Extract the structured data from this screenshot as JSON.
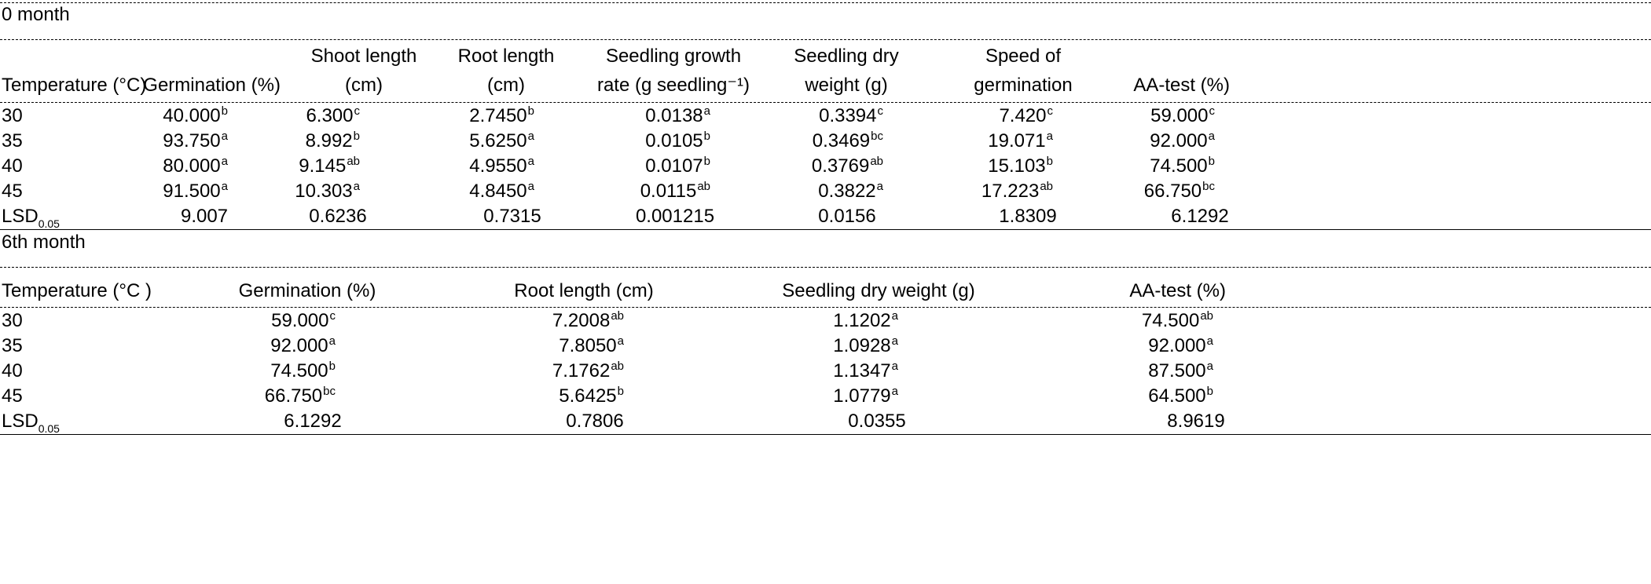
{
  "table1": {
    "section_title": "0 month",
    "headers": [
      [
        "Temperature (°C)"
      ],
      [
        "Germination (%)"
      ],
      [
        "Shoot length",
        "(cm)"
      ],
      [
        "Root length",
        "(cm)"
      ],
      [
        "Seedling growth",
        "rate (g seedling⁻¹)"
      ],
      [
        "Seedling dry",
        "weight (g)"
      ],
      [
        "Speed of",
        "germination"
      ],
      [
        "AA-test (%)"
      ]
    ],
    "rows": [
      [
        {
          "v": "30"
        },
        {
          "v": "40.000",
          "s": "b"
        },
        {
          "v": "6.300",
          "s": "c"
        },
        {
          "v": "2.7450",
          "s": "b"
        },
        {
          "v": "0.0138",
          "s": "a"
        },
        {
          "v": "0.3394",
          "s": "c"
        },
        {
          "v": "7.420",
          "s": "c"
        },
        {
          "v": "59.000",
          "s": "c"
        }
      ],
      [
        {
          "v": "35"
        },
        {
          "v": "93.750",
          "s": "a"
        },
        {
          "v": "8.992",
          "s": "b"
        },
        {
          "v": "5.6250",
          "s": "a"
        },
        {
          "v": "0.0105",
          "s": "b"
        },
        {
          "v": "0.3469",
          "s": "bc"
        },
        {
          "v": "19.071",
          "s": "a"
        },
        {
          "v": "92.000",
          "s": "a"
        }
      ],
      [
        {
          "v": "40"
        },
        {
          "v": "80.000",
          "s": "a"
        },
        {
          "v": "9.145",
          "s": "ab"
        },
        {
          "v": "4.9550",
          "s": "a"
        },
        {
          "v": "0.0107",
          "s": "b"
        },
        {
          "v": "0.3769",
          "s": "ab"
        },
        {
          "v": "15.103",
          "s": "b"
        },
        {
          "v": "74.500",
          "s": "b"
        }
      ],
      [
        {
          "v": "45"
        },
        {
          "v": "91.500",
          "s": "a"
        },
        {
          "v": "10.303",
          "s": "a"
        },
        {
          "v": "4.8450",
          "s": "a"
        },
        {
          "v": "0.0115",
          "s": "ab"
        },
        {
          "v": "0.3822",
          "s": "a"
        },
        {
          "v": "17.223",
          "s": "ab"
        },
        {
          "v": "66.750",
          "s": "bc"
        }
      ],
      [
        {
          "v": "LSD",
          "sub": "0.05"
        },
        {
          "v": "9.007"
        },
        {
          "v": "0.6236"
        },
        {
          "v": "0.7315"
        },
        {
          "v": "0.001215"
        },
        {
          "v": "0.0156"
        },
        {
          "v": "1.8309"
        },
        {
          "v": "6.1292"
        }
      ]
    ]
  },
  "table2": {
    "section_title": "6th month",
    "headers": [
      [
        "Temperature (°C )"
      ],
      [
        "Germination (%)"
      ],
      [
        "Root length (cm)"
      ],
      [
        "Seedling dry weight (g)"
      ],
      [
        "AA-test (%)"
      ]
    ],
    "rows": [
      [
        {
          "v": "30"
        },
        {
          "v": "59.000",
          "s": "c"
        },
        {
          "v": "7.2008",
          "s": "ab"
        },
        {
          "v": "1.1202",
          "s": "a"
        },
        {
          "v": "74.500",
          "s": "ab"
        }
      ],
      [
        {
          "v": "35"
        },
        {
          "v": "92.000",
          "s": "a"
        },
        {
          "v": "7.8050",
          "s": "a"
        },
        {
          "v": "1.0928",
          "s": "a"
        },
        {
          "v": "92.000",
          "s": "a"
        }
      ],
      [
        {
          "v": "40"
        },
        {
          "v": "74.500",
          "s": "b"
        },
        {
          "v": "7.1762",
          "s": "ab"
        },
        {
          "v": "1.1347",
          "s": "a"
        },
        {
          "v": "87.500",
          "s": "a"
        }
      ],
      [
        {
          "v": "45"
        },
        {
          "v": "66.750",
          "s": "bc"
        },
        {
          "v": "5.6425",
          "s": "b"
        },
        {
          "v": "1.0779",
          "s": "a"
        },
        {
          "v": "64.500",
          "s": "b"
        }
      ],
      [
        {
          "v": "LSD",
          "sub": "0.05"
        },
        {
          "v": "6.1292"
        },
        {
          "v": "0.7806"
        },
        {
          "v": "0.0355"
        },
        {
          "v": "8.9619"
        }
      ]
    ]
  }
}
